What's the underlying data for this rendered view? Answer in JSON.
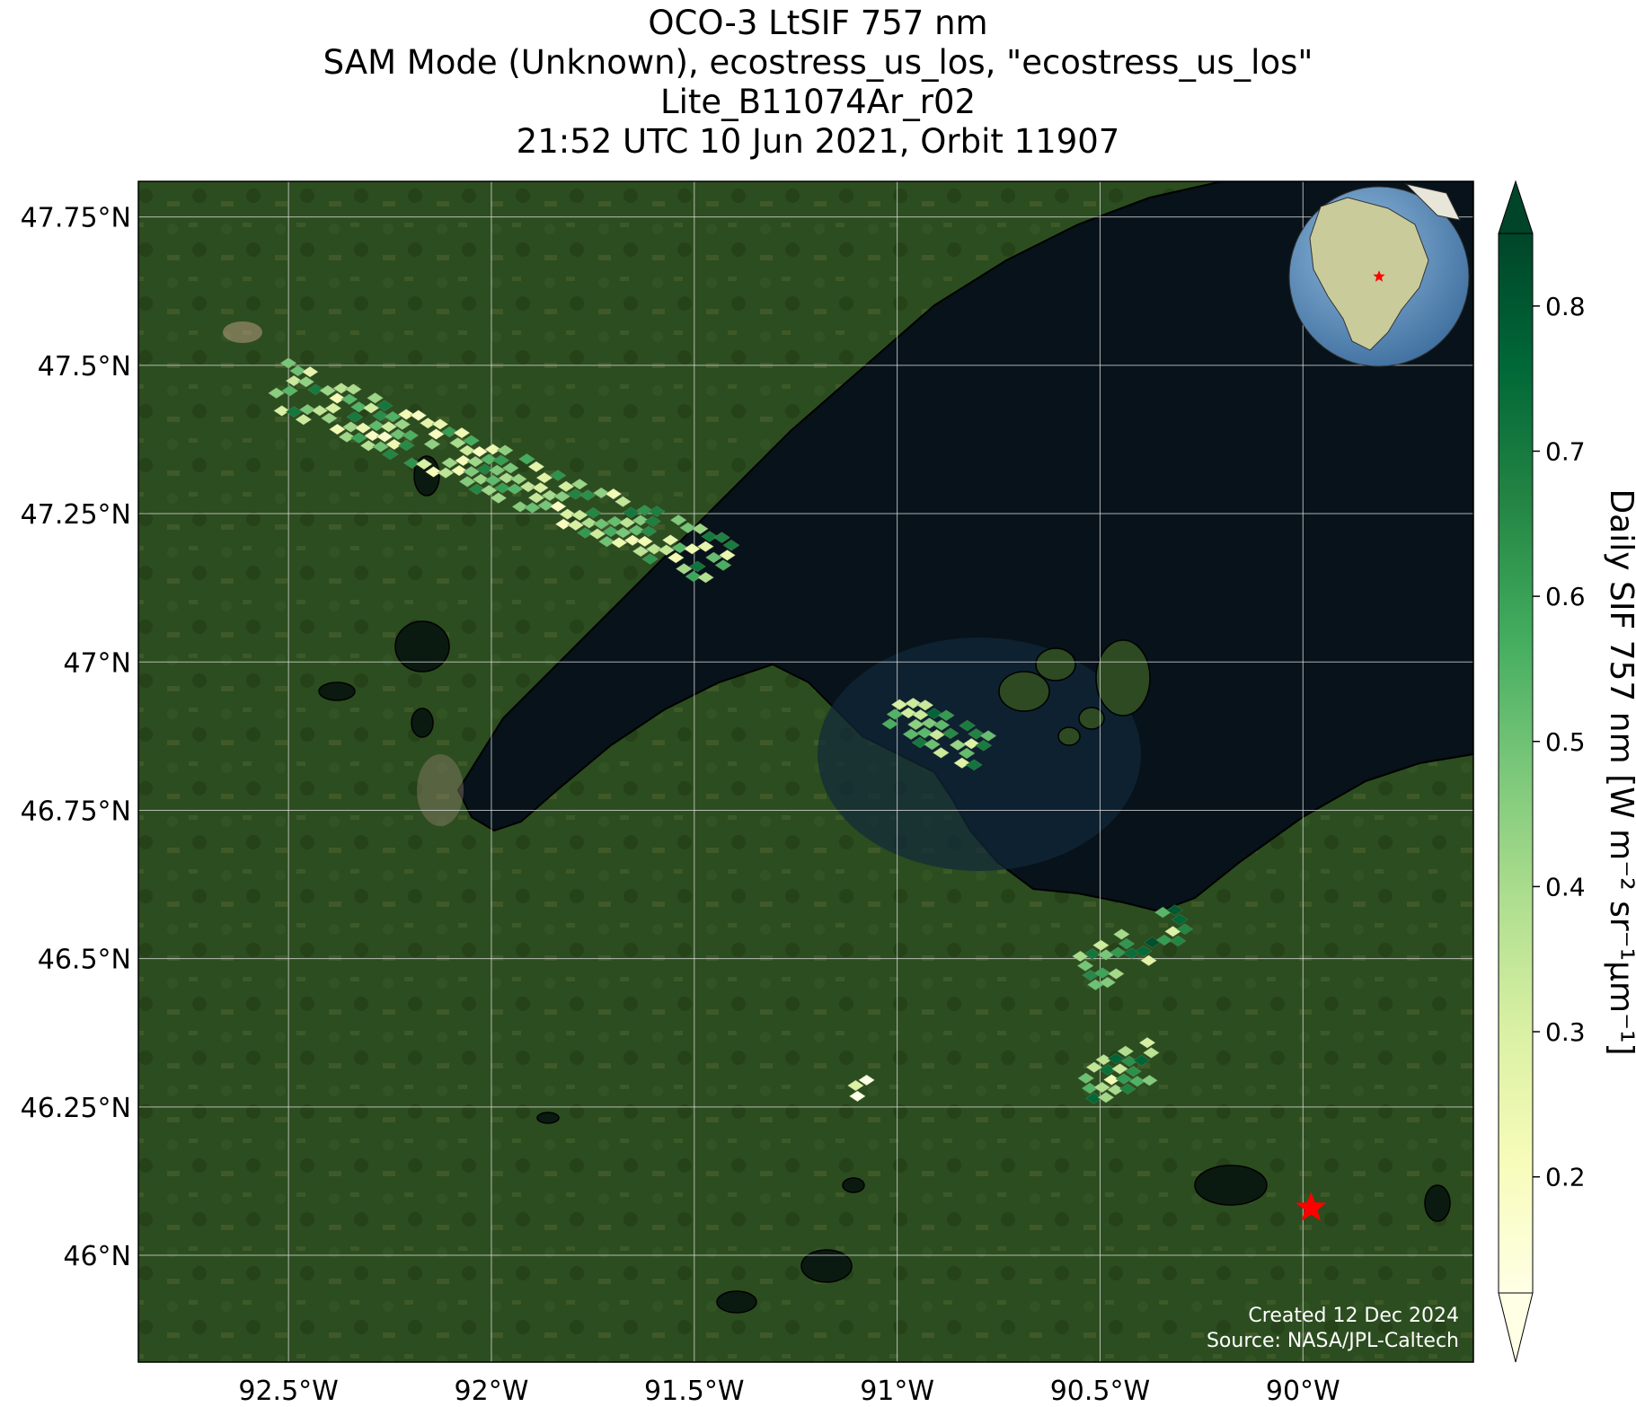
{
  "title": {
    "line1": "OCO-3 LtSIF 757 nm",
    "line2": "SAM Mode (Unknown), ecostress_us_los, \"ecostress_us_los\"",
    "line3": "Lite_B11074Ar_r02",
    "line4": "21:52 UTC 10 Jun 2021, Orbit 11907"
  },
  "map": {
    "lon_range": [
      -92.87,
      -89.58
    ],
    "lat_range": [
      45.82,
      47.81
    ],
    "lon_ticks": [
      {
        "value": -92.5,
        "label": "92.5°W"
      },
      {
        "value": -92.0,
        "label": "92°W"
      },
      {
        "value": -91.5,
        "label": "91.5°W"
      },
      {
        "value": -91.0,
        "label": "91°W"
      },
      {
        "value": -90.5,
        "label": "90.5°W"
      },
      {
        "value": -90.0,
        "label": "90°W"
      }
    ],
    "lat_ticks": [
      {
        "value": 47.75,
        "label": "47.75°N"
      },
      {
        "value": 47.5,
        "label": "47.5°N"
      },
      {
        "value": 47.25,
        "label": "47.25°N"
      },
      {
        "value": 47.0,
        "label": "47°N"
      },
      {
        "value": 46.75,
        "label": "46.75°N"
      },
      {
        "value": 46.5,
        "label": "46.5°N"
      },
      {
        "value": 46.25,
        "label": "46.25°N"
      },
      {
        "value": 46.0,
        "label": "46°N"
      }
    ],
    "target_star": {
      "lon": -89.98,
      "lat": 46.08,
      "color": "#ff0000"
    },
    "colors": {
      "land": "#2a4a1e",
      "water": "#07121a",
      "gridline": "#d8d8d8",
      "coast": "#000000"
    }
  },
  "colorbar": {
    "label": "Daily SIF 757 nm [W m⁻² sr⁻¹μm⁻¹]",
    "min": 0.12,
    "max": 0.85,
    "ticks": [
      "0.2",
      "0.3",
      "0.4",
      "0.5",
      "0.6",
      "0.7",
      "0.8"
    ],
    "tick_values": [
      0.2,
      0.3,
      0.4,
      0.5,
      0.6,
      0.7,
      0.8
    ],
    "extend": "both",
    "cmap": [
      "#ffffe5",
      "#f7fcb9",
      "#d9f0a3",
      "#addd8e",
      "#78c679",
      "#41ab5d",
      "#238443",
      "#006837",
      "#004529"
    ]
  },
  "credits": {
    "created": "Created 12 Dec 2024",
    "source": "Source: NASA/JPL-Caltech"
  },
  "chart_data": {
    "type": "scatter",
    "swaths": [
      {
        "lon_start": -92.52,
        "lat_start": 47.47,
        "lon_end": -91.43,
        "lat_end": 47.17,
        "mean_sif": 0.45
      },
      {
        "lon_start": -91.0,
        "lat_start": 46.92,
        "lon_end": -90.79,
        "lat_end": 46.85,
        "mean_sif": 0.55
      },
      {
        "lon_start": -90.53,
        "lat_start": 46.48,
        "lon_end": -90.31,
        "lat_end": 46.56,
        "mean_sif": 0.55
      },
      {
        "lon_start": -90.53,
        "lat_start": 46.29,
        "lon_end": -90.38,
        "lat_end": 46.33,
        "mean_sif": 0.5
      },
      {
        "lon_start": -91.13,
        "lat_start": 46.28,
        "lon_end": -91.04,
        "lat_end": 46.29,
        "mean_sif": 0.3
      }
    ]
  }
}
